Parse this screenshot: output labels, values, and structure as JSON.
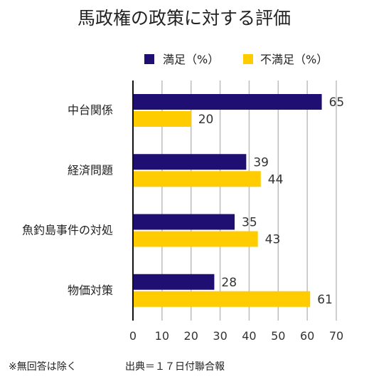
{
  "chart_data": {
    "type": "bar",
    "orientation": "horizontal",
    "title": "馬政権の政策に対する評価",
    "categories": [
      "中台関係",
      "経済問題",
      "魚釣島事件の対処",
      "物価対策"
    ],
    "series": [
      {
        "name": "満足（%）",
        "color": "#1f0f73",
        "values": [
          65,
          39,
          35,
          28
        ]
      },
      {
        "name": "不満足（%）",
        "color": "#ffcc00",
        "values": [
          20,
          44,
          43,
          61
        ]
      }
    ],
    "xlim": [
      0,
      70
    ],
    "xticks": [
      0,
      10,
      20,
      30,
      40,
      50,
      60,
      70
    ],
    "grid": true,
    "legend_position": "top"
  },
  "footer": {
    "note": "※無回答は除く",
    "source": "出典＝１７日付聯合報"
  }
}
